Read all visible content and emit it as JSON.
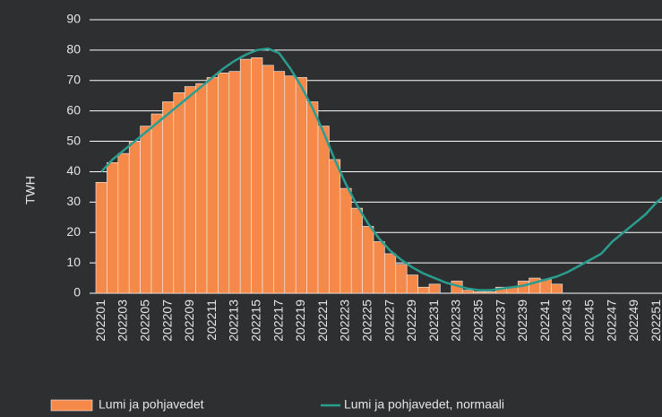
{
  "chart_data": {
    "type": "bar",
    "y_label": "TWH",
    "categories": [
      "202201",
      null,
      "202203",
      null,
      "202205",
      null,
      "202207",
      null,
      "202209",
      null,
      "202211",
      null,
      "202213",
      null,
      "202215",
      null,
      "202217",
      null,
      "202219",
      null,
      "202221",
      null,
      "202223",
      null,
      "202225",
      null,
      "202227",
      null,
      "202229",
      null,
      "202231",
      null,
      "202233",
      null,
      "202235",
      null,
      "202237",
      null,
      "202239",
      null,
      "202241",
      null,
      "202243",
      null,
      "202245",
      null,
      "202247",
      null,
      "202249",
      null,
      "202251",
      null
    ],
    "series": [
      {
        "name": "Lumi ja pohjavedet",
        "type": "bar",
        "color": "#f5894a",
        "values": [
          36.5,
          43,
          46,
          50,
          55,
          59,
          63,
          66,
          68,
          69,
          71,
          72.5,
          73,
          77,
          77.5,
          75,
          73,
          71.5,
          71,
          63,
          55,
          44,
          34.5,
          28,
          22,
          17,
          13,
          9.5,
          6,
          2,
          3,
          null,
          4,
          1,
          0.5,
          0.5,
          2,
          2,
          4,
          5,
          4.5,
          3,
          null,
          null,
          null,
          null,
          null,
          null,
          null,
          null,
          null,
          null
        ]
      },
      {
        "name": "Lumi ja pohjavedet, normaali",
        "type": "line",
        "color": "#2a9d8f",
        "values": [
          40,
          44,
          47,
          50,
          53,
          56,
          59,
          62,
          65,
          68,
          71,
          74,
          76.5,
          78.5,
          80,
          80.5,
          79,
          74,
          68,
          61,
          53,
          44,
          36,
          29,
          23,
          18,
          14,
          11,
          8.5,
          6.5,
          5,
          3.5,
          2.5,
          1.5,
          1,
          1,
          1.5,
          2,
          2.5,
          3.5,
          4.5,
          5.5,
          7,
          9,
          11,
          13,
          17,
          20,
          23,
          26,
          30,
          33
        ]
      }
    ],
    "ylim": [
      0,
      90
    ],
    "yticks": [
      0,
      10,
      20,
      30,
      40,
      50,
      60,
      70,
      80,
      90
    ],
    "grid": true
  }
}
